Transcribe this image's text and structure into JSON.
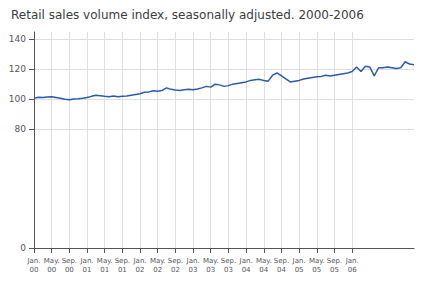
{
  "chart_data": {
    "type": "line",
    "title": "Retail sales volume index, seasonally adjusted. 2000-2006",
    "categories": [
      "Jan.\n00",
      null,
      null,
      null,
      "May.\n00",
      null,
      null,
      null,
      "Sep.\n00",
      null,
      null,
      null,
      "Jan.\n01",
      null,
      null,
      null,
      "May.\n01",
      null,
      null,
      null,
      "Sep.\n01",
      null,
      null,
      null,
      "Jan.\n02",
      null,
      null,
      null,
      "May.\n02",
      null,
      null,
      null,
      "Sep.\n02",
      null,
      null,
      null,
      "Jan.\n03",
      null,
      null,
      null,
      "May.\n03",
      null,
      null,
      null,
      "Sep.\n03",
      null,
      null,
      null,
      "Jan.\n04",
      null,
      null,
      null,
      "May.\n04",
      null,
      null,
      null,
      "Sep.\n04",
      null,
      null,
      null,
      "Jan.\n05",
      null,
      null,
      null,
      "May.\n05",
      null,
      null,
      null,
      "Sep.\n05",
      null,
      null,
      null,
      "Jan.\n06",
      null,
      null,
      null,
      null,
      null,
      null,
      null,
      null,
      null,
      null,
      null,
      null,
      null,
      null
    ],
    "values": [
      100.5,
      101.2,
      101.0,
      101.3,
      101.5,
      101.0,
      100.5,
      99.8,
      99.5,
      100.0,
      100.2,
      100.5,
      101.0,
      101.8,
      102.5,
      102.2,
      101.8,
      101.5,
      102.0,
      101.5,
      101.8,
      102.0,
      102.5,
      103.0,
      103.5,
      104.5,
      104.8,
      105.5,
      105.2,
      105.8,
      107.5,
      106.5,
      106.0,
      105.8,
      106.2,
      106.5,
      106.2,
      106.8,
      107.5,
      108.5,
      108.0,
      110.0,
      109.5,
      108.5,
      109.0,
      110.0,
      110.5,
      111.0,
      111.5,
      112.5,
      113.0,
      113.2,
      112.5,
      112.0,
      116.0,
      117.5,
      115.5,
      113.5,
      111.5,
      112.0,
      112.5,
      113.5,
      114.0,
      114.5,
      115.0,
      115.2,
      116.0,
      115.5,
      116.0,
      116.5,
      117.0,
      117.5,
      118.5,
      121.5,
      118.5,
      122.0,
      121.5,
      115.5,
      121.0,
      121.0,
      121.5,
      121.0,
      120.5,
      121.0,
      125.0,
      123.5,
      123.0
    ],
    "color": "#2B5BA8",
    "ylim": [
      0,
      145
    ],
    "yticks": [
      0,
      80,
      100,
      120,
      140
    ],
    "grid": true
  }
}
